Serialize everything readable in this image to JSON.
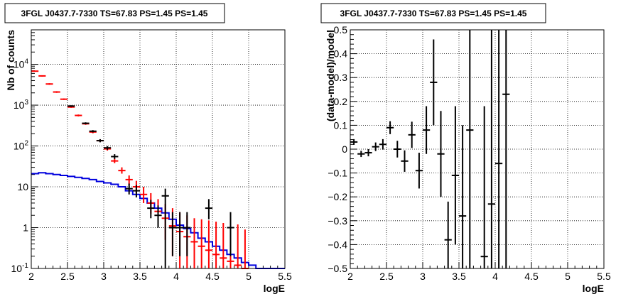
{
  "chart_data": [
    {
      "type": "scatter",
      "title": "3FGL J0437.7-7330 TS=67.83 PS=1.45 PS=1.45",
      "xlabel": "logE",
      "ylabel": "Nb of counts",
      "xlim": [
        2,
        5.5
      ],
      "ylim": [
        0.1,
        70000
      ],
      "yscale": "log",
      "grid": true,
      "x_ticks": [
        "2",
        "2.5",
        "3",
        "3.5",
        "4",
        "4.5",
        "5",
        "5.5"
      ],
      "y_ticks": [
        "10^-1",
        "1",
        "10",
        "10^2",
        "10^3",
        "10^4"
      ],
      "series": [
        {
          "color": "#ff0000",
          "points": [
            {
              "x": 2.05,
              "y": 6800,
              "lo": 6600,
              "hi": 7000
            },
            {
              "x": 2.15,
              "y": 5200,
              "lo": 5000,
              "hi": 5400
            },
            {
              "x": 2.25,
              "y": 3300,
              "lo": 3150,
              "hi": 3450
            },
            {
              "x": 2.35,
              "y": 2100,
              "lo": 2000,
              "hi": 2200
            },
            {
              "x": 2.45,
              "y": 1400,
              "lo": 1340,
              "hi": 1460
            },
            {
              "x": 2.55,
              "y": 900,
              "lo": 860,
              "hi": 940
            },
            {
              "x": 2.65,
              "y": 560,
              "lo": 530,
              "hi": 590
            },
            {
              "x": 2.75,
              "y": 350,
              "lo": 330,
              "hi": 370
            },
            {
              "x": 2.85,
              "y": 220,
              "lo": 205,
              "hi": 235
            },
            {
              "x": 2.95,
              "y": 135,
              "lo": 125,
              "hi": 145
            },
            {
              "x": 3.05,
              "y": 85,
              "lo": 77,
              "hi": 93
            },
            {
              "x": 3.15,
              "y": 43,
              "lo": 38,
              "hi": 49
            },
            {
              "x": 3.25,
              "y": 25,
              "lo": 21,
              "hi": 30
            },
            {
              "x": 3.35,
              "y": 15,
              "lo": 11,
              "hi": 19
            },
            {
              "x": 3.45,
              "y": 10,
              "lo": 7,
              "hi": 14
            },
            {
              "x": 3.55,
              "y": 6.5,
              "lo": 4,
              "hi": 10
            },
            {
              "x": 3.65,
              "y": 4,
              "lo": 2.2,
              "hi": 7
            },
            {
              "x": 3.75,
              "y": 2.5,
              "lo": 1.1,
              "hi": 5
            },
            {
              "x": 3.85,
              "y": 1.7,
              "lo": 0.5,
              "hi": 3.8
            },
            {
              "x": 3.95,
              "y": 1.1,
              "lo": 0.2,
              "hi": 3
            },
            {
              "x": 4.05,
              "y": 0.8,
              "lo": 0.1,
              "hi": 2.4
            },
            {
              "x": 4.15,
              "y": 0.6,
              "lo": 0.1,
              "hi": 2
            },
            {
              "x": 4.25,
              "y": 0.45,
              "lo": 0.1,
              "hi": 1.7
            },
            {
              "x": 4.35,
              "y": 0.35,
              "lo": 0.1,
              "hi": 1.6
            },
            {
              "x": 4.45,
              "y": 0.28,
              "lo": 0.1,
              "hi": 1.5
            },
            {
              "x": 4.55,
              "y": 0.22,
              "lo": 0.1,
              "hi": 1.4
            },
            {
              "x": 4.65,
              "y": 0.18,
              "lo": 0.1,
              "hi": 1.3
            },
            {
              "x": 4.75,
              "y": 0.15,
              "lo": 0.1,
              "hi": 1.25
            },
            {
              "x": 4.85,
              "y": 0.12,
              "lo": 0.1,
              "hi": 1.2
            },
            {
              "x": 4.95,
              "y": 0.1,
              "lo": 0.1,
              "hi": 0.9
            }
          ]
        },
        {
          "color": "#000000",
          "points": [
            {
              "x": 2.55,
              "y": 950,
              "lo": 910,
              "hi": 990
            },
            {
              "x": 2.75,
              "y": 360,
              "lo": 340,
              "hi": 380
            },
            {
              "x": 2.85,
              "y": 230,
              "lo": 215,
              "hi": 245
            },
            {
              "x": 2.95,
              "y": 135,
              "lo": 123,
              "hi": 147
            },
            {
              "x": 3.05,
              "y": 90,
              "lo": 81,
              "hi": 99
            },
            {
              "x": 3.15,
              "y": 55,
              "lo": 48,
              "hi": 63
            },
            {
              "x": 3.35,
              "y": 9,
              "lo": 6.5,
              "hi": 12
            },
            {
              "x": 3.45,
              "y": 8,
              "lo": 5.5,
              "hi": 11
            },
            {
              "x": 3.65,
              "y": 3,
              "lo": 1.7,
              "hi": 4.8
            },
            {
              "x": 3.75,
              "y": 2,
              "lo": 1,
              "hi": 3.5
            },
            {
              "x": 3.85,
              "y": 6,
              "lo": 0.1,
              "hi": 9
            },
            {
              "x": 3.95,
              "y": 1,
              "lo": 0.2,
              "hi": 2.4
            },
            {
              "x": 4.05,
              "y": 1,
              "lo": 0.2,
              "hi": 2.4
            },
            {
              "x": 4.15,
              "y": 1,
              "lo": 0.2,
              "hi": 2.4
            },
            {
              "x": 4.45,
              "y": 3,
              "lo": 1.6,
              "hi": 5
            },
            {
              "x": 4.75,
              "y": 1,
              "lo": 0.2,
              "hi": 2.4
            }
          ]
        }
      ],
      "model": {
        "color": "#0000dd",
        "edges": [
          2.0,
          2.1,
          2.2,
          2.3,
          2.4,
          2.5,
          2.6,
          2.7,
          2.8,
          2.9,
          3.0,
          3.1,
          3.2,
          3.3,
          3.4,
          3.5,
          3.6,
          3.7,
          3.8,
          3.9,
          4.0,
          4.1,
          4.2,
          4.3,
          4.4,
          4.5,
          4.6,
          4.7,
          4.8,
          4.9,
          5.0,
          5.1,
          5.2,
          5.3,
          5.4,
          5.5
        ],
        "values": [
          21,
          22,
          21,
          20,
          19,
          18,
          17,
          16,
          15,
          13.5,
          12.5,
          11.5,
          10,
          8,
          6.5,
          5.2,
          4,
          3,
          2.3,
          1.6,
          1.15,
          0.95,
          0.75,
          0.55,
          0.45,
          0.35,
          0.28,
          0.22,
          0.18,
          0.14,
          0.12,
          0.1,
          0.1,
          0.1,
          0.1
        ]
      }
    },
    {
      "type": "scatter",
      "title": "3FGL J0437.7-7330 TS=67.83 PS=1.45 PS=1.45",
      "xlabel": "logE",
      "ylabel": "(data-model)/model",
      "xlim": [
        2,
        5.5
      ],
      "ylim": [
        -0.5,
        0.5
      ],
      "grid": true,
      "x_ticks": [
        "2",
        "2.5",
        "3",
        "3.5",
        "4",
        "4.5",
        "5",
        "5.5"
      ],
      "y_ticks": [
        "−0.5",
        "−0.4",
        "−0.3",
        "−0.2",
        "−0.1",
        "0",
        "0.1",
        "0.2",
        "0.3",
        "0.4",
        "0.5"
      ],
      "series": [
        {
          "color": "#000000",
          "points": [
            {
              "x": 2.05,
              "y": 0.03,
              "lo": 0.018,
              "hi": 0.042
            },
            {
              "x": 2.15,
              "y": -0.02,
              "lo": -0.033,
              "hi": -0.007
            },
            {
              "x": 2.25,
              "y": -0.015,
              "lo": -0.03,
              "hi": 0.0
            },
            {
              "x": 2.35,
              "y": 0.01,
              "lo": -0.008,
              "hi": 0.028
            },
            {
              "x": 2.45,
              "y": 0.02,
              "lo": -0.002,
              "hi": 0.042
            },
            {
              "x": 2.55,
              "y": 0.09,
              "lo": 0.063,
              "hi": 0.117
            },
            {
              "x": 2.65,
              "y": 0.0,
              "lo": -0.035,
              "hi": 0.035
            },
            {
              "x": 2.75,
              "y": -0.05,
              "lo": -0.095,
              "hi": -0.005
            },
            {
              "x": 2.85,
              "y": 0.06,
              "lo": 0.005,
              "hi": 0.115
            },
            {
              "x": 2.95,
              "y": -0.09,
              "lo": -0.165,
              "hi": -0.015
            },
            {
              "x": 3.05,
              "y": 0.08,
              "lo": -0.02,
              "hi": 0.18
            },
            {
              "x": 3.15,
              "y": 0.28,
              "lo": 0.1,
              "hi": 0.46
            },
            {
              "x": 3.25,
              "y": -0.02,
              "lo": -0.2,
              "hi": 0.16
            },
            {
              "x": 3.35,
              "y": -0.38,
              "lo": -0.5,
              "hi": -0.22
            },
            {
              "x": 3.45,
              "y": -0.11,
              "lo": -0.4,
              "hi": 0.18
            },
            {
              "x": 3.55,
              "y": -0.28,
              "lo": -0.5,
              "hi": 0.1
            },
            {
              "x": 3.65,
              "y": 0.08,
              "lo": -0.5,
              "hi": 0.5
            },
            {
              "x": 3.85,
              "y": -0.45,
              "lo": -0.5,
              "hi": 0.18
            },
            {
              "x": 3.95,
              "y": -0.23,
              "lo": -0.5,
              "hi": 0.5
            },
            {
              "x": 4.05,
              "y": -0.06,
              "lo": -0.5,
              "hi": 0.5
            },
            {
              "x": 4.15,
              "y": 0.23,
              "lo": -0.5,
              "hi": 0.5
            }
          ]
        }
      ]
    }
  ]
}
